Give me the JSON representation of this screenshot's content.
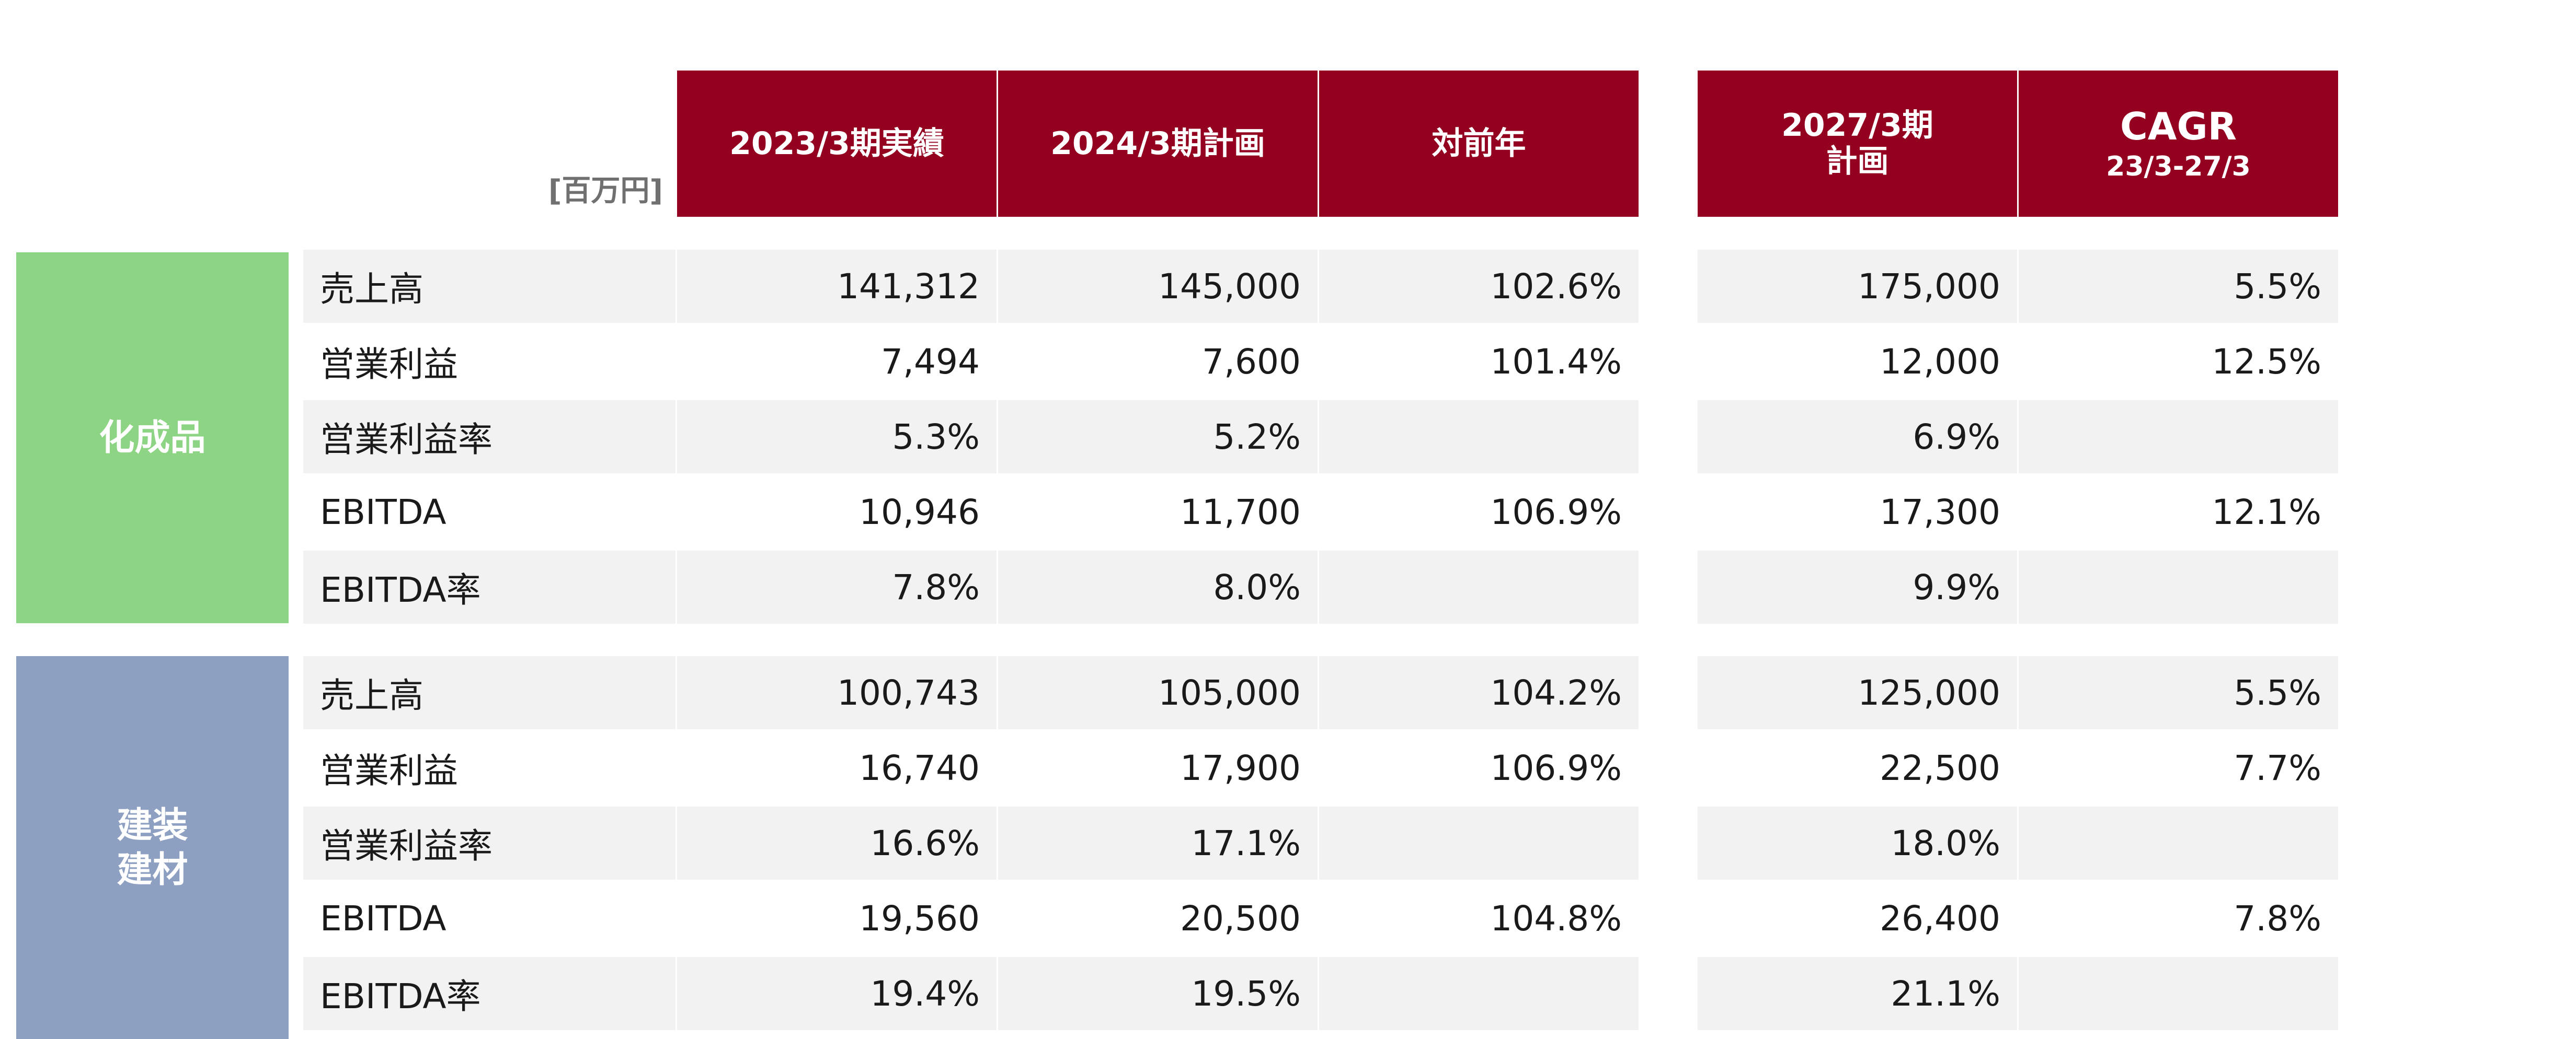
{
  "header": {
    "unit_label": "[百万円]",
    "col1": "2023/3期実績",
    "col2": "2024/3期計画",
    "col3": "対前年",
    "col4_line1": "2027/3期",
    "col4_line2": "計画",
    "col5_line1": "CAGR",
    "col5_line2": "23/3-27/3"
  },
  "segments": [
    {
      "label_lines": [
        "化成品"
      ],
      "color": "#8ed485",
      "rows": [
        {
          "label": "売上高",
          "c1": "141,312",
          "c2": "145,000",
          "c3": "102.6%",
          "c4": "175,000",
          "c5": "5.5%"
        },
        {
          "label": "営業利益",
          "c1": "7,494",
          "c2": "7,600",
          "c3": "101.4%",
          "c4": "12,000",
          "c5": "12.5%"
        },
        {
          "label": "営業利益率",
          "c1": "5.3%",
          "c2": "5.2%",
          "c3": "",
          "c4": "6.9%",
          "c5": ""
        },
        {
          "label": "EBITDA",
          "c1": "10,946",
          "c2": "11,700",
          "c3": "106.9%",
          "c4": "17,300",
          "c5": "12.1%"
        },
        {
          "label": "EBITDA率",
          "c1": "7.8%",
          "c2": "8.0%",
          "c3": "",
          "c4": "9.9%",
          "c5": ""
        }
      ]
    },
    {
      "label_lines": [
        "建装",
        "建材"
      ],
      "color": "#8ea0c2",
      "rows": [
        {
          "label": "売上高",
          "c1": "100,743",
          "c2": "105,000",
          "c3": "104.2%",
          "c4": "125,000",
          "c5": "5.5%"
        },
        {
          "label": "営業利益",
          "c1": "16,740",
          "c2": "17,900",
          "c3": "106.9%",
          "c4": "22,500",
          "c5": "7.7%"
        },
        {
          "label": "営業利益率",
          "c1": "16.6%",
          "c2": "17.1%",
          "c3": "",
          "c4": "18.0%",
          "c5": ""
        },
        {
          "label": "EBITDA",
          "c1": "19,560",
          "c2": "20,500",
          "c3": "104.8%",
          "c4": "26,400",
          "c5": "7.8%"
        },
        {
          "label": "EBITDA率",
          "c1": "19.4%",
          "c2": "19.5%",
          "c3": "",
          "c4": "21.1%",
          "c5": ""
        }
      ]
    }
  ],
  "colors": {
    "header_bg": "#930020",
    "row_shade": "#f2f2f2"
  }
}
